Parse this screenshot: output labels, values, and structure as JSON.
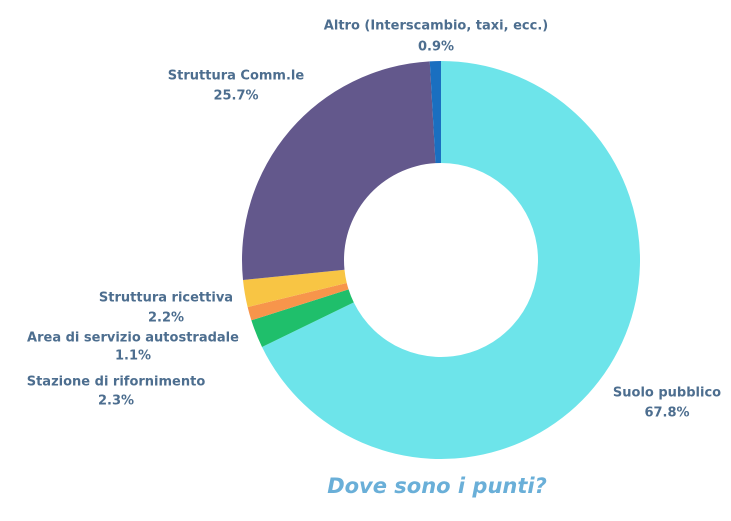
{
  "chart_data": {
    "type": "donut",
    "title": "Dove sono i punti?",
    "categories": [
      "Suolo pubblico",
      "Stazione di rifornimento",
      "Area di servizio autostradale",
      "Struttura ricettiva",
      "Struttura Comm.le",
      "Altro (Interscambio, taxi, ecc.)"
    ],
    "values": [
      67.8,
      2.3,
      1.1,
      2.2,
      25.7,
      0.9
    ],
    "value_labels": [
      "67.8%",
      "2.3%",
      "1.1%",
      "2.2%",
      "25.7%",
      "0.9%"
    ],
    "colors": [
      "#6de4ea",
      "#1fbf6b",
      "#f7954b",
      "#f8c544",
      "#63588c",
      "#1a6fc0"
    ]
  }
}
